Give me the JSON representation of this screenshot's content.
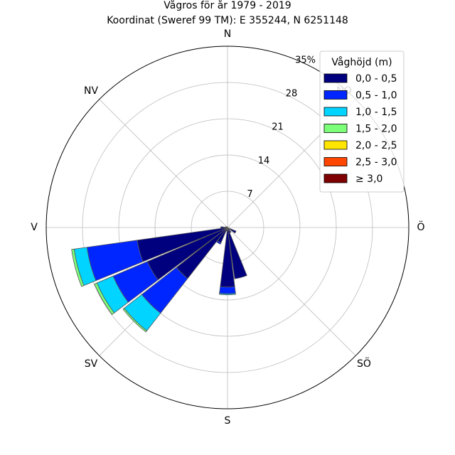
{
  "chart_data": {
    "type": "windrose",
    "title": "Vågros för år 1979 - 2019",
    "subtitle": "Koordinat (Sweref 99 TM): E 355244, N 6251148",
    "direction_labels": {
      "N": "N",
      "NO": "NO",
      "O": "Ö",
      "SO": "SÖ",
      "S": "S",
      "SV": "SV",
      "V": "V",
      "NV": "NV"
    },
    "radial_ticks": [
      "7",
      "14",
      "21",
      "28",
      "35%"
    ],
    "radial_tick_values": [
      7,
      14,
      21,
      28,
      35
    ],
    "rmax": 35,
    "legend": {
      "title": "Våghöjd (m)",
      "placement": "top-right",
      "bins": [
        "0,0 - 0,5",
        "0,5 - 1,0",
        "1,0 - 1,5",
        "1,5 - 2,0",
        "2,0 - 2,5",
        "2,5 - 3,0",
        "≥ 3,0"
      ],
      "colors": [
        "#00007f",
        "#0026ff",
        "#00d4ff",
        "#7cff79",
        "#ffe500",
        "#ff4600",
        "#7f0000"
      ]
    },
    "sectors": [
      {
        "direction_deg": 180,
        "values": [
          11.5,
          1.3,
          0.2,
          0,
          0,
          0,
          0
        ]
      },
      {
        "direction_deg": 195,
        "values": [
          0.4,
          0.3,
          0,
          0,
          0,
          0,
          0
        ]
      },
      {
        "direction_deg": 210,
        "values": [
          3.2,
          0.3,
          0,
          0,
          0,
          0,
          0
        ]
      },
      {
        "direction_deg": 225,
        "values": [
          12.5,
          8.5,
          4.3,
          0.3,
          0,
          0,
          0
        ]
      },
      {
        "direction_deg": 240,
        "values": [
          16.8,
          7.2,
          3.4,
          0.5,
          0,
          0,
          0
        ]
      },
      {
        "direction_deg": 255,
        "values": [
          17.6,
          9.8,
          2.5,
          0.5,
          0,
          0,
          0
        ]
      },
      {
        "direction_deg": 270,
        "values": [
          1.3,
          0,
          0,
          0,
          0,
          0,
          0
        ]
      },
      {
        "direction_deg": 285,
        "values": [
          0.4,
          0,
          0,
          0,
          0,
          0,
          0
        ]
      },
      {
        "direction_deg": 165,
        "values": [
          10.0,
          0,
          0,
          0,
          0,
          0,
          0
        ]
      },
      {
        "direction_deg": 150,
        "values": [
          1.1,
          0,
          0,
          0,
          0,
          0,
          0
        ]
      },
      {
        "direction_deg": 120,
        "values": [
          1.8,
          0,
          0,
          0,
          0,
          0,
          0
        ]
      },
      {
        "direction_deg": 315,
        "values": [
          0.2,
          0,
          0,
          0,
          0,
          0,
          0
        ]
      }
    ]
  }
}
